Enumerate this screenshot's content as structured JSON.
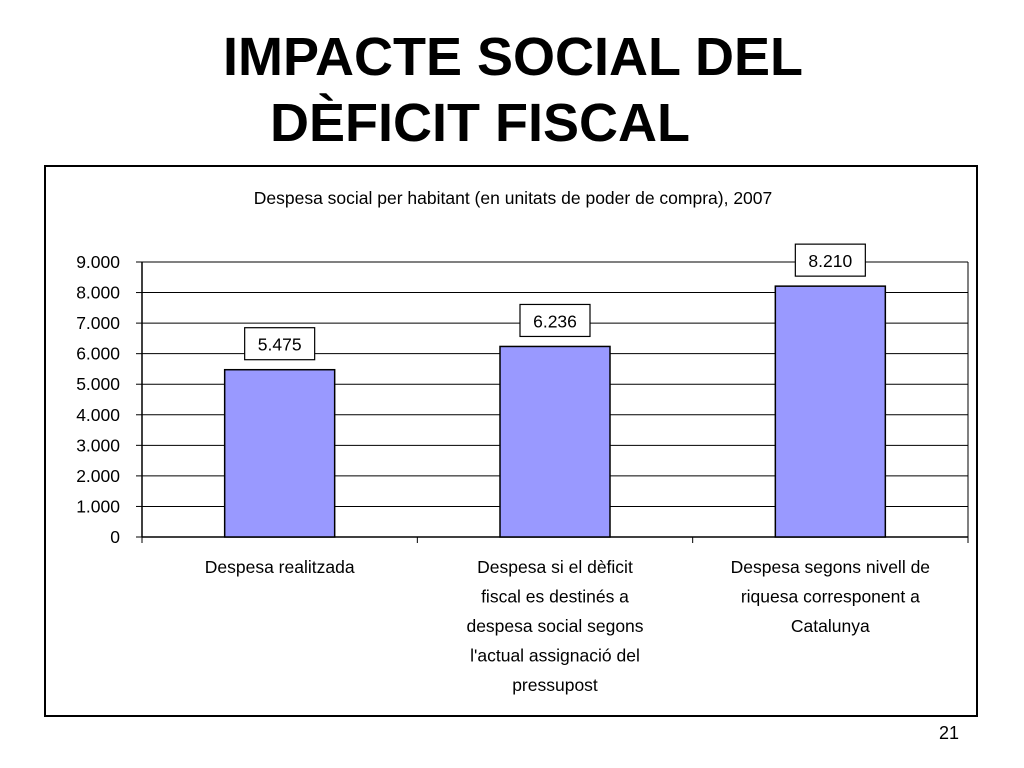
{
  "slide": {
    "title_line1": "IMPACTE SOCIAL DEL",
    "title_line2": "DÈFICIT FISCAL",
    "page_number": "21"
  },
  "chart_data": {
    "type": "bar",
    "title": "Despesa social per habitant (en unitats de poder de compra), 2007",
    "xlabel": "",
    "ylabel": "",
    "categories": [
      [
        "Despesa realitzada"
      ],
      [
        "Despesa si el dèficit",
        "fiscal es destinés a",
        "despesa social segons",
        "l'actual assignació del",
        "pressupost"
      ],
      [
        "Despesa segons nivell de",
        "riquesa corresponent a",
        "Catalunya"
      ]
    ],
    "values": [
      5475,
      6236,
      8210
    ],
    "value_labels": [
      "5.475",
      "6.236",
      "8.210"
    ],
    "ylim": [
      0,
      9000
    ],
    "yticks": [
      0,
      1000,
      2000,
      3000,
      4000,
      5000,
      6000,
      7000,
      8000,
      9000
    ],
    "ytick_labels": [
      "0",
      "1.000",
      "2.000",
      "3.000",
      "4.000",
      "5.000",
      "6.000",
      "7.000",
      "8.000",
      "9.000"
    ],
    "grid": true,
    "legend": "none",
    "bar_color": "#9999ff"
  }
}
